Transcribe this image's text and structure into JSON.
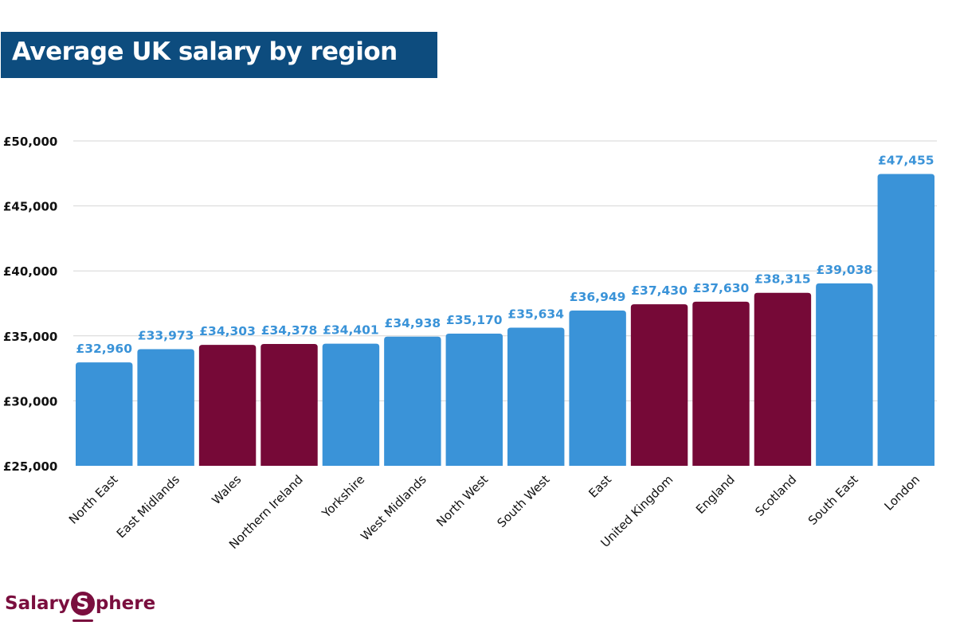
{
  "chart_data": {
    "type": "bar",
    "title": "Average UK salary by region",
    "xlabel": "",
    "ylabel": "",
    "ylim": [
      25000,
      50000
    ],
    "yticks": [
      25000,
      30000,
      35000,
      40000,
      45000,
      50000
    ],
    "ytick_labels": [
      "£25,000",
      "£30,000",
      "£35,000",
      "£40,000",
      "£45,000",
      "£50,000"
    ],
    "grid": true,
    "categories": [
      "North East",
      "East Midlands",
      "Wales",
      "Northern Ireland",
      "Yorkshire",
      "West Midlands",
      "North West",
      "South West",
      "East",
      "United Kingdom",
      "England",
      "Scotland",
      "South East",
      "London"
    ],
    "values": [
      32960,
      33973,
      34303,
      34378,
      34401,
      34938,
      35170,
      35634,
      36949,
      37430,
      37630,
      38315,
      39038,
      47455
    ],
    "value_labels": [
      "£32,960",
      "£33,973",
      "£34,303",
      "£34,378",
      "£34,401",
      "£34,938",
      "£35,170",
      "£35,634",
      "£36,949",
      "£37,430",
      "£37,630",
      "£38,315",
      "£39,038",
      "£47,455"
    ],
    "bar_groups": [
      "region",
      "region",
      "nation",
      "nation",
      "region",
      "region",
      "region",
      "region",
      "region",
      "nation",
      "nation",
      "nation",
      "region",
      "region"
    ],
    "colors": {
      "region": "#3a93d8",
      "nation": "#760937",
      "value_label": "#3a93d8",
      "grid": "#d6d6d6",
      "tick_label": "#111111"
    }
  },
  "header": {
    "title": "Average UK salary by region"
  },
  "brand": {
    "name_prefix": "Salary",
    "name_badge": "S",
    "name_suffix": "phere"
  }
}
